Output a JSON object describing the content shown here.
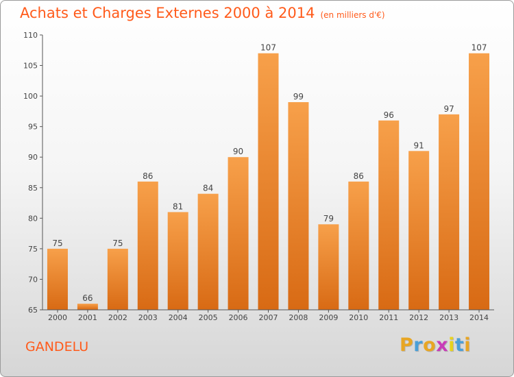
{
  "title": "Achats et Charges Externes 2000 à 2014",
  "subtitle": "(en milliers d'€)",
  "location": "GANDELU",
  "logo_text": "Proxiti",
  "chart_data": {
    "type": "bar",
    "categories": [
      "2000",
      "2001",
      "2002",
      "2003",
      "2004",
      "2005",
      "2006",
      "2007",
      "2008",
      "2009",
      "2010",
      "2011",
      "2012",
      "2013",
      "2014"
    ],
    "values": [
      75,
      66,
      75,
      86,
      81,
      84,
      90,
      107,
      99,
      79,
      86,
      96,
      91,
      97,
      107
    ],
    "ylim": [
      65,
      110
    ],
    "yticks": [
      65,
      70,
      75,
      80,
      85,
      90,
      95,
      100,
      105,
      110
    ],
    "grid": false,
    "bar_color_top": "#f7a04a",
    "bar_color_bottom": "#d86a14"
  },
  "colors": {
    "title": "#ff5a1a",
    "axis": "#555555",
    "label": "#444444"
  }
}
